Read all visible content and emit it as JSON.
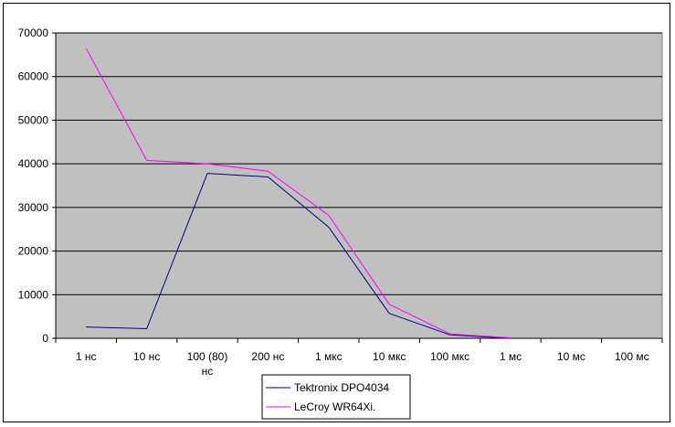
{
  "chart_data": {
    "type": "line",
    "title": "",
    "xlabel": "",
    "ylabel": "",
    "categories": [
      [
        "1 нс"
      ],
      [
        "10 нс"
      ],
      [
        "100 (80)",
        "нс"
      ],
      [
        "200 нс"
      ],
      [
        "1 мкс"
      ],
      [
        "10 мкс"
      ],
      [
        "100 мкс"
      ],
      [
        "1 мс"
      ],
      [
        "10 мс"
      ],
      [
        "100 мс"
      ]
    ],
    "ylim": [
      0,
      70000
    ],
    "yticks": [
      0,
      10000,
      20000,
      30000,
      40000,
      50000,
      60000,
      70000
    ],
    "grid": "horizontal",
    "legend_position": "bottom",
    "series": [
      {
        "name": "Tektronix DPO4034",
        "color": "#000080",
        "values": [
          2600,
          2200,
          37800,
          37000,
          25500,
          5700,
          800,
          0,
          null,
          null
        ]
      },
      {
        "name": "LeCroy WR64Xi.",
        "color": "#ff00ff",
        "values": [
          66500,
          40800,
          40000,
          38300,
          28200,
          7800,
          1000,
          100,
          null,
          null
        ]
      }
    ]
  }
}
